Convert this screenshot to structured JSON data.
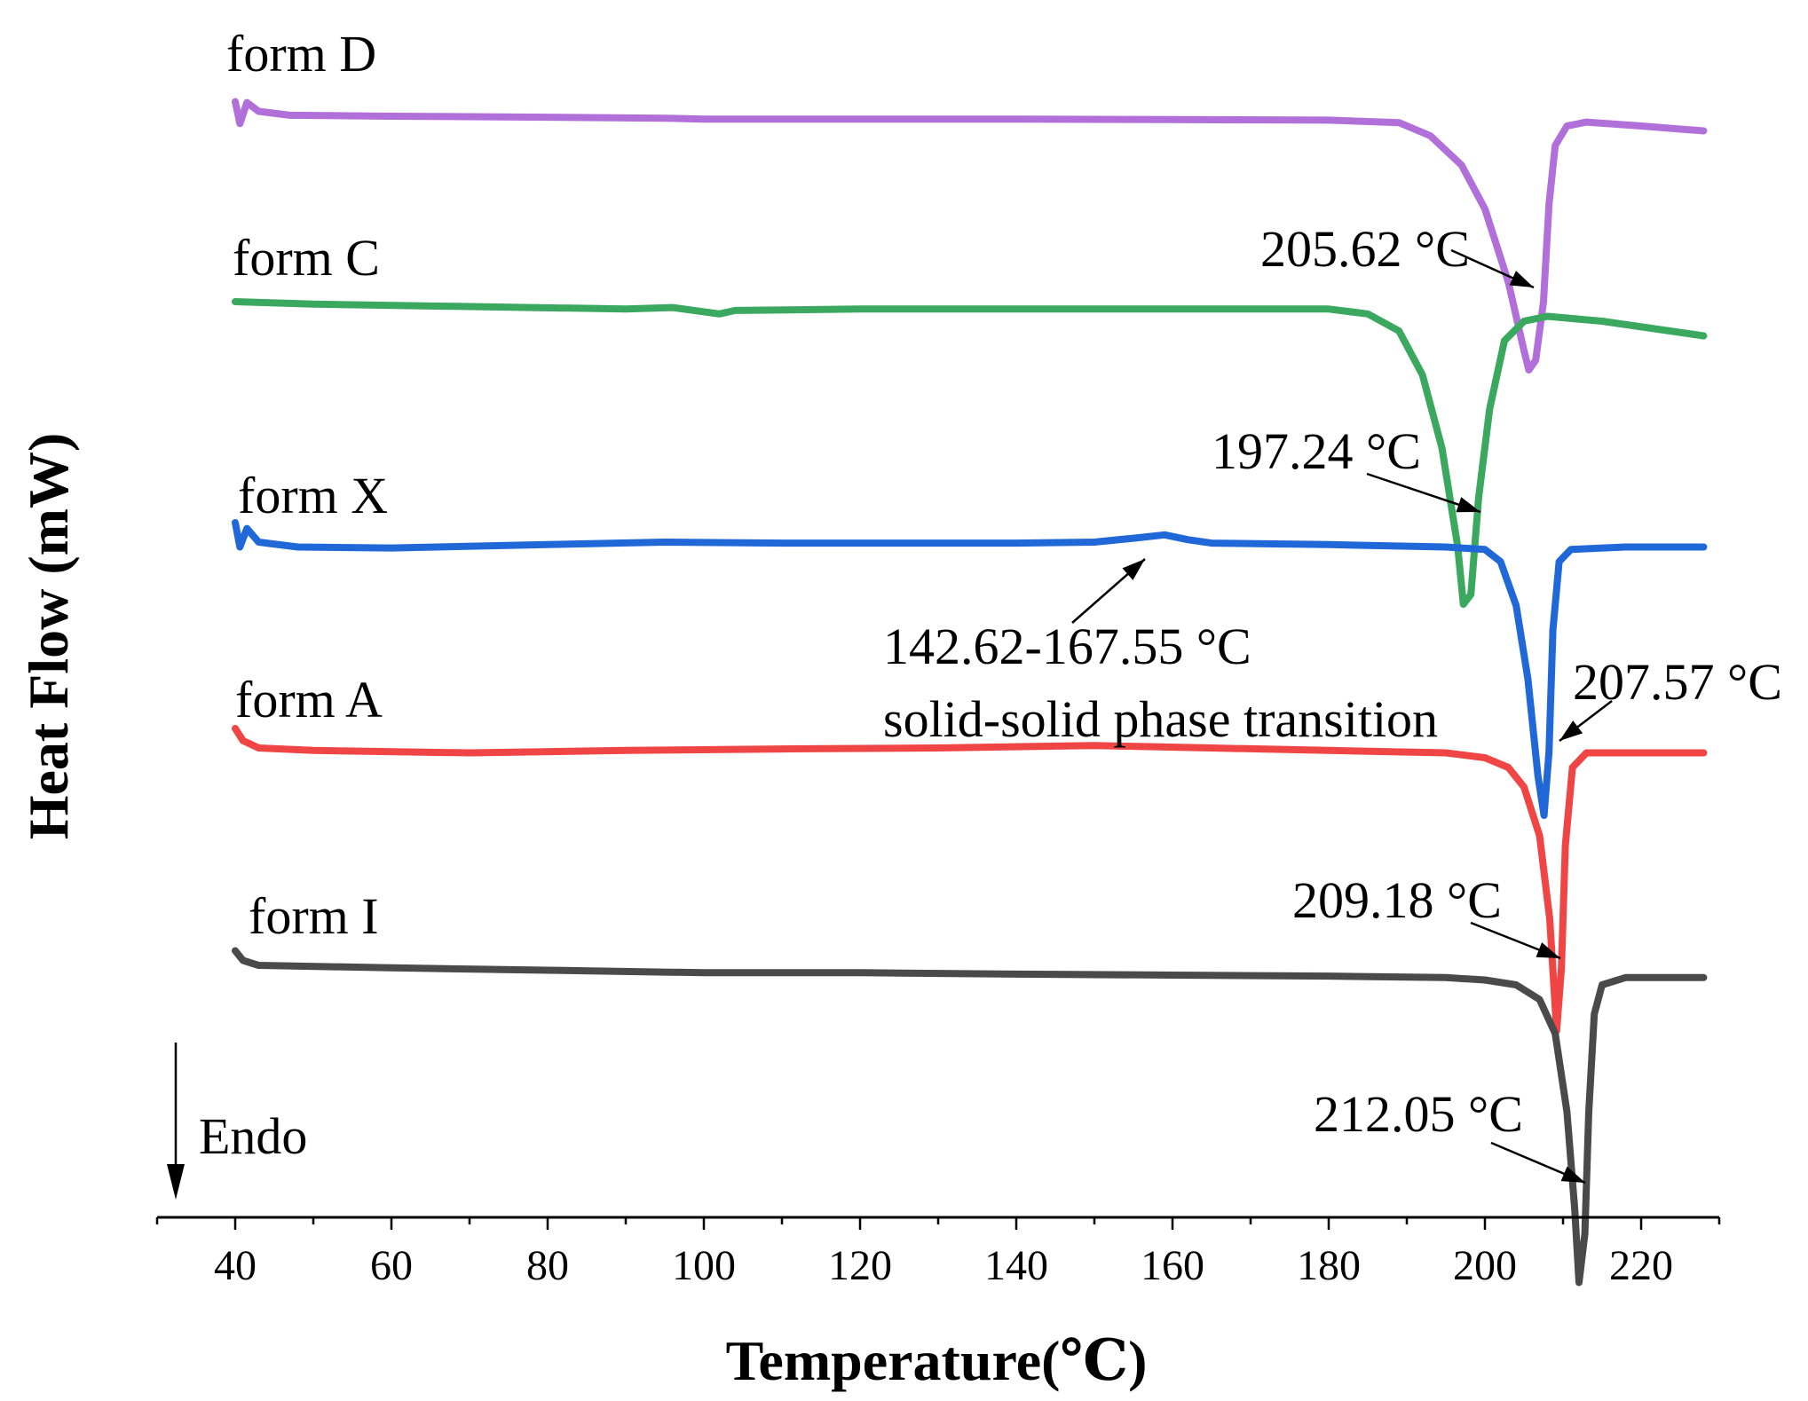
{
  "chart_data": {
    "type": "line",
    "xlabel": "Temperature(℃)",
    "ylabel": "Heat Flow (mW)",
    "xlim": [
      30,
      230
    ],
    "x_ticks": [
      40,
      60,
      80,
      100,
      120,
      140,
      160,
      180,
      200,
      220
    ],
    "x_tick_labels": [
      "40",
      "60",
      "80",
      "100",
      "120",
      "140",
      "160",
      "180",
      "200",
      "220"
    ],
    "y_ticks_shown": false,
    "grid": false,
    "legend": "none",
    "endo_label": "Endo",
    "series": [
      {
        "name": "form D",
        "color": "#b06fd9",
        "points": [
          [
            40,
            0.1
          ],
          [
            40.6,
            -0.35
          ],
          [
            41.5,
            0.08
          ],
          [
            43,
            -0.1
          ],
          [
            47,
            -0.18
          ],
          [
            60,
            -0.2
          ],
          [
            80,
            -0.22
          ],
          [
            95,
            -0.24
          ],
          [
            100,
            -0.26
          ],
          [
            120,
            -0.26
          ],
          [
            140,
            -0.26
          ],
          [
            160,
            -0.27
          ],
          [
            180,
            -0.28
          ],
          [
            189,
            -0.33
          ],
          [
            193,
            -0.6
          ],
          [
            197,
            -1.2
          ],
          [
            200,
            -2.1
          ],
          [
            203,
            -3.6
          ],
          [
            205,
            -5.0
          ],
          [
            205.62,
            -5.4
          ],
          [
            206.5,
            -5.2
          ],
          [
            207.5,
            -4.0
          ],
          [
            208.2,
            -2.0
          ],
          [
            209,
            -0.8
          ],
          [
            210.5,
            -0.4
          ],
          [
            213,
            -0.32
          ],
          [
            220,
            -0.4
          ],
          [
            228,
            -0.5
          ]
        ]
      },
      {
        "name": "form C",
        "color": "#3aa85f",
        "points": [
          [
            40,
            0.0
          ],
          [
            50,
            -0.05
          ],
          [
            70,
            -0.1
          ],
          [
            90,
            -0.15
          ],
          [
            96,
            -0.12
          ],
          [
            102,
            -0.25
          ],
          [
            104,
            -0.18
          ],
          [
            120,
            -0.15
          ],
          [
            140,
            -0.15
          ],
          [
            160,
            -0.15
          ],
          [
            180,
            -0.15
          ],
          [
            185,
            -0.25
          ],
          [
            189,
            -0.6
          ],
          [
            192,
            -1.5
          ],
          [
            194.5,
            -3.0
          ],
          [
            196.5,
            -5.0
          ],
          [
            197.24,
            -6.2
          ],
          [
            198.2,
            -6.0
          ],
          [
            199.2,
            -4.0
          ],
          [
            200.6,
            -2.2
          ],
          [
            202.5,
            -0.8
          ],
          [
            205,
            -0.4
          ],
          [
            208,
            -0.3
          ],
          [
            215,
            -0.4
          ],
          [
            228,
            -0.7
          ]
        ]
      },
      {
        "name": "form X",
        "color": "#2068d8",
        "points": [
          [
            40,
            0.2
          ],
          [
            40.6,
            -0.3
          ],
          [
            41.5,
            0.08
          ],
          [
            43,
            -0.2
          ],
          [
            48,
            -0.3
          ],
          [
            60,
            -0.32
          ],
          [
            80,
            -0.25
          ],
          [
            95,
            -0.2
          ],
          [
            110,
            -0.22
          ],
          [
            140,
            -0.22
          ],
          [
            150,
            -0.2
          ],
          [
            155,
            -0.12
          ],
          [
            159,
            -0.05
          ],
          [
            162,
            -0.15
          ],
          [
            165,
            -0.22
          ],
          [
            180,
            -0.25
          ],
          [
            195,
            -0.3
          ],
          [
            200,
            -0.35
          ],
          [
            202,
            -0.6
          ],
          [
            204,
            -1.5
          ],
          [
            205.5,
            -3.0
          ],
          [
            206.8,
            -5.0
          ],
          [
            207.57,
            -5.8
          ],
          [
            208.2,
            -4.5
          ],
          [
            208.7,
            -2.0
          ],
          [
            209.5,
            -0.6
          ],
          [
            211,
            -0.35
          ],
          [
            218,
            -0.3
          ],
          [
            228,
            -0.3
          ]
        ]
      },
      {
        "name": "form A",
        "color": "#f04545",
        "points": [
          [
            40,
            0.4
          ],
          [
            41,
            0.15
          ],
          [
            43,
            0.0
          ],
          [
            50,
            -0.05
          ],
          [
            70,
            -0.1
          ],
          [
            90,
            -0.05
          ],
          [
            110,
            -0.02
          ],
          [
            130,
            0.0
          ],
          [
            150,
            0.05
          ],
          [
            165,
            0.0
          ],
          [
            180,
            -0.05
          ],
          [
            195,
            -0.1
          ],
          [
            200,
            -0.2
          ],
          [
            203,
            -0.4
          ],
          [
            205,
            -0.8
          ],
          [
            207,
            -1.8
          ],
          [
            208.3,
            -3.5
          ],
          [
            209.18,
            -5.8
          ],
          [
            209.8,
            -4.5
          ],
          [
            210.3,
            -2.0
          ],
          [
            211.2,
            -0.4
          ],
          [
            213,
            -0.1
          ],
          [
            220,
            -0.1
          ],
          [
            228,
            -0.1
          ]
        ]
      },
      {
        "name": "form I",
        "color": "#4a4a4a",
        "points": [
          [
            40,
            0.3
          ],
          [
            41,
            0.1
          ],
          [
            43,
            0.0
          ],
          [
            60,
            -0.05
          ],
          [
            80,
            -0.1
          ],
          [
            100,
            -0.15
          ],
          [
            120,
            -0.15
          ],
          [
            140,
            -0.18
          ],
          [
            160,
            -0.2
          ],
          [
            180,
            -0.22
          ],
          [
            195,
            -0.25
          ],
          [
            200,
            -0.3
          ],
          [
            204,
            -0.4
          ],
          [
            207,
            -0.7
          ],
          [
            209,
            -1.4
          ],
          [
            210.5,
            -3.0
          ],
          [
            211.5,
            -5.0
          ],
          [
            212.05,
            -6.5
          ],
          [
            212.8,
            -5.5
          ],
          [
            213.3,
            -3.0
          ],
          [
            214,
            -1.0
          ],
          [
            215,
            -0.4
          ],
          [
            218,
            -0.25
          ],
          [
            228,
            -0.25
          ]
        ]
      }
    ],
    "annotations": [
      {
        "series": "form D",
        "text": "205.62 °C",
        "x": 205.62
      },
      {
        "series": "form C",
        "text": "197.24 °C",
        "x": 197.24
      },
      {
        "series": "form X",
        "text": "142.62-167.55 °C",
        "x": 159
      },
      {
        "series": "form X",
        "text": "solid-solid phase transition",
        "x": 159
      },
      {
        "series": "form X",
        "text": "207.57 °C",
        "x": 207.57
      },
      {
        "series": "form A",
        "text": "209.18 °C",
        "x": 209.18
      },
      {
        "series": "form I",
        "text": "212.05 °C",
        "x": 212.05
      }
    ]
  }
}
